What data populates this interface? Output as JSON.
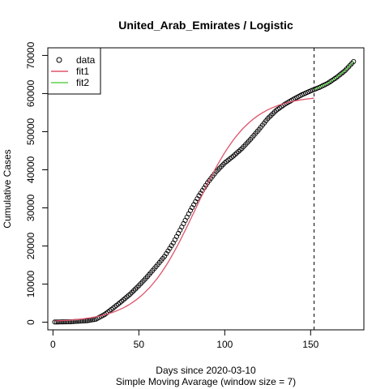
{
  "chart_data": {
    "type": "scatter",
    "title": "United_Arab_Emirates / Logistic",
    "xlabel": "Days since 2020-03-10",
    "xlabel2": "Simple Moving Avarage (window size = 7)",
    "ylabel": "Cumulative Cases",
    "xlim": [
      -3,
      181
    ],
    "ylim": [
      -2000,
      72000
    ],
    "x_ticks": [
      0,
      50,
      100,
      150
    ],
    "y_ticks": [
      0,
      10000,
      20000,
      30000,
      40000,
      50000,
      60000,
      70000
    ],
    "cutoff_x": 152,
    "legend_position": "top-left",
    "legend": [
      "data",
      "fit1",
      "fit2"
    ],
    "colors": {
      "data": "#000000",
      "fit1": "#DF536B",
      "fit2": "#61D04F",
      "cutoff": "#000000"
    },
    "data_knots": [
      [
        1,
        50
      ],
      [
        10,
        120
      ],
      [
        20,
        400
      ],
      [
        25,
        800
      ],
      [
        30,
        2000
      ],
      [
        35,
        3700
      ],
      [
        40,
        5500
      ],
      [
        45,
        7400
      ],
      [
        50,
        9600
      ],
      [
        55,
        12000
      ],
      [
        60,
        14600
      ],
      [
        65,
        17300
      ],
      [
        70,
        20800
      ],
      [
        75,
        25000
      ],
      [
        80,
        29300
      ],
      [
        85,
        33200
      ],
      [
        90,
        36600
      ],
      [
        95,
        39500
      ],
      [
        100,
        41800
      ],
      [
        105,
        43600
      ],
      [
        110,
        45600
      ],
      [
        115,
        48000
      ],
      [
        120,
        50600
      ],
      [
        125,
        53400
      ],
      [
        130,
        55600
      ],
      [
        135,
        57200
      ],
      [
        140,
        58500
      ],
      [
        145,
        59700
      ],
      [
        150,
        60700
      ],
      [
        155,
        61600
      ],
      [
        160,
        62700
      ],
      [
        165,
        64200
      ],
      [
        170,
        66000
      ],
      [
        175,
        68400
      ]
    ],
    "series": [
      {
        "name": "data",
        "kind": "points",
        "x_from": 1,
        "x_to": 175
      },
      {
        "name": "fit1",
        "kind": "logistic",
        "K": 59500,
        "r": 0.064,
        "x0": 83,
        "x_from": 1,
        "x_to": 152
      },
      {
        "name": "fit2",
        "kind": "line",
        "points": [
          [
            152,
            61100
          ],
          [
            155,
            61600
          ],
          [
            160,
            62700
          ],
          [
            165,
            64200
          ],
          [
            170,
            66000
          ],
          [
            175,
            68400
          ]
        ]
      }
    ]
  }
}
